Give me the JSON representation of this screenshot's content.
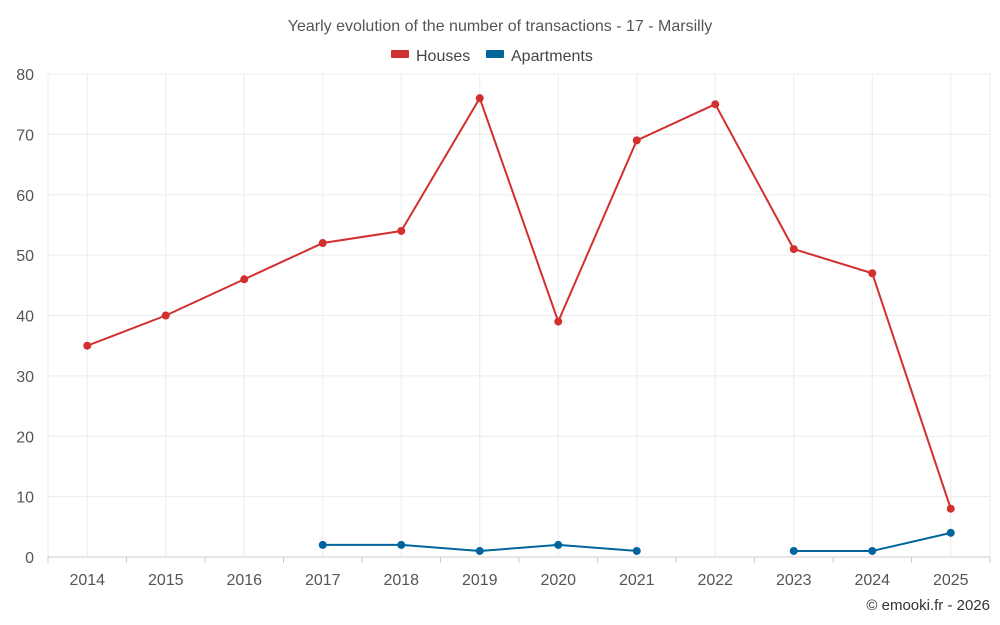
{
  "chart_data": {
    "type": "line",
    "title": "Yearly evolution of the number of transactions - 17 - Marsilly",
    "categories": [
      "2014",
      "2015",
      "2016",
      "2017",
      "2018",
      "2019",
      "2020",
      "2021",
      "2022",
      "2023",
      "2024",
      "2025"
    ],
    "ylim": [
      0,
      80
    ],
    "yticks": [
      0,
      10,
      20,
      30,
      40,
      50,
      60,
      70,
      80
    ],
    "grid": true,
    "legend_position": "top-center",
    "series": [
      {
        "name": "Houses",
        "color": "#d32f2f",
        "values": [
          35,
          40,
          46,
          52,
          54,
          76,
          39,
          69,
          75,
          51,
          47,
          8
        ]
      },
      {
        "name": "Apartments",
        "color": "#00659c",
        "values": [
          null,
          null,
          null,
          2,
          2,
          1,
          2,
          1,
          null,
          1,
          1,
          4
        ]
      }
    ]
  },
  "credit": "© emooki.fr - 2026"
}
